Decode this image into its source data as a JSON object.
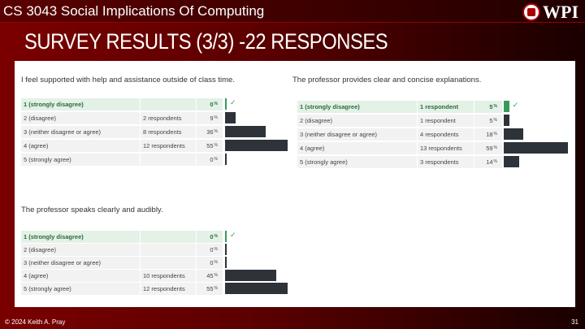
{
  "header": {
    "course": "CS 3043 Social Implications Of Computing",
    "logo_text": "WPI"
  },
  "title": "SURVEY RESULTS (3/3)  -22 RESPONSES",
  "questions": [
    {
      "text": "I feel supported with help and assistance outside of class time.",
      "rows": [
        {
          "label": "1 (strongly disagree)",
          "respondents": "",
          "pct": 0,
          "selected": true
        },
        {
          "label": "2 (disagree)",
          "respondents": "2 respondents",
          "pct": 9
        },
        {
          "label": "3 (neither disagree or agree)",
          "respondents": "8 respondents",
          "pct": 36
        },
        {
          "label": "4 (agree)",
          "respondents": "12 respondents",
          "pct": 55
        },
        {
          "label": "5 (strongly agree)",
          "respondents": "",
          "pct": 0
        }
      ]
    },
    {
      "text": "The professor provides clear and concise explanations.",
      "rows": [
        {
          "label": "1 (strongly disagree)",
          "respondents": "1 respondent",
          "pct": 5,
          "selected": true
        },
        {
          "label": "2 (disagree)",
          "respondents": "1 respondent",
          "pct": 5
        },
        {
          "label": "3 (neither disagree or agree)",
          "respondents": "4 respondents",
          "pct": 18
        },
        {
          "label": "4 (agree)",
          "respondents": "13 respondents",
          "pct": 59
        },
        {
          "label": "5 (strongly agree)",
          "respondents": "3 respondents",
          "pct": 14
        }
      ]
    },
    {
      "text": "The professor speaks clearly and audibly.",
      "rows": [
        {
          "label": "1 (strongly disagree)",
          "respondents": "",
          "pct": 0,
          "selected": true
        },
        {
          "label": "2 (disagree)",
          "respondents": "",
          "pct": 0
        },
        {
          "label": "3 (neither disagree or agree)",
          "respondents": "",
          "pct": 0
        },
        {
          "label": "4 (agree)",
          "respondents": "10 respondents",
          "pct": 45
        },
        {
          "label": "5 (strongly agree)",
          "respondents": "12 respondents",
          "pct": 55
        }
      ]
    }
  ],
  "pct_unit": "%",
  "check_icon": "checkmark",
  "colors": {
    "bar": "#2d3339",
    "selected_bar": "#3a9a5a",
    "selected_row": "#e3f1e6"
  },
  "footer": {
    "copyright": "© 2024 Keith A. Pray",
    "page": "31"
  }
}
